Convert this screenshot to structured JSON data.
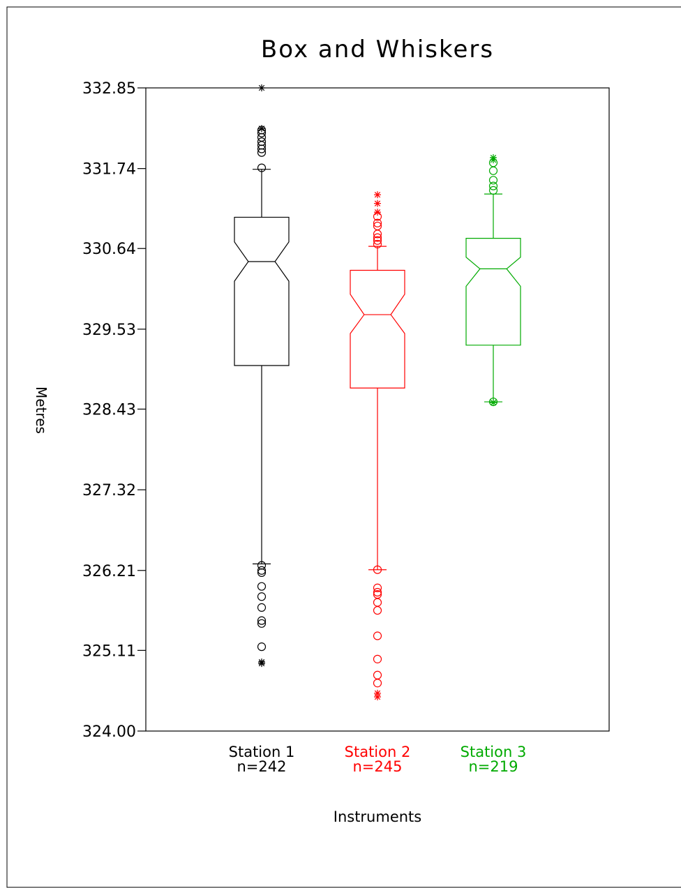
{
  "chart_data": {
    "type": "boxplot",
    "title": "Box and Whiskers",
    "xlabel": "Instruments",
    "ylabel": "Metres",
    "ylim": [
      324.0,
      332.85
    ],
    "yticks": [
      "332.85",
      "331.74",
      "330.64",
      "329.53",
      "328.43",
      "327.32",
      "326.21",
      "325.11",
      "324.00"
    ],
    "notched": true,
    "grid": false,
    "series": [
      {
        "name": "Station 1",
        "n_label": "n=242",
        "color": "#000000",
        "q1": 329.03,
        "median": 330.46,
        "q3": 331.07,
        "notch_low": 330.19,
        "notch_high": 330.73,
        "whisker_low": 326.3,
        "whisker_high": 331.73,
        "outliers_circle": [
          331.75,
          331.96,
          332.01,
          332.06,
          332.11,
          332.17,
          332.23,
          332.27,
          326.28,
          326.21,
          326.18,
          325.99,
          325.85,
          325.7,
          325.52,
          325.48,
          325.16
        ],
        "outliers_star": [
          332.85,
          332.29,
          324.95,
          324.93
        ]
      },
      {
        "name": "Station 2",
        "n_label": "n=245",
        "color": "#ff0000",
        "q1": 328.72,
        "median": 329.73,
        "q3": 330.34,
        "notch_low": 329.47,
        "notch_high": 330.01,
        "whisker_low": 326.22,
        "whisker_high": 330.67,
        "outliers_circle": [
          330.7,
          330.75,
          330.79,
          330.84,
          330.95,
          330.99,
          331.08,
          326.22,
          325.97,
          325.91,
          325.88,
          325.77,
          325.66,
          325.31,
          324.99,
          324.77,
          324.66
        ],
        "outliers_star": [
          331.38,
          331.26,
          331.14,
          324.52,
          324.47
        ]
      },
      {
        "name": "Station 3",
        "n_label": "n=219",
        "color": "#00aa00",
        "q1": 329.31,
        "median": 330.36,
        "q3": 330.78,
        "notch_low": 330.12,
        "notch_high": 330.52,
        "whisker_low": 328.53,
        "whisker_high": 331.39,
        "outliers_circle": [
          331.44,
          331.5,
          331.58,
          331.71,
          331.82,
          328.53
        ],
        "outliers_star": [
          331.89,
          331.86,
          328.52
        ]
      }
    ]
  }
}
